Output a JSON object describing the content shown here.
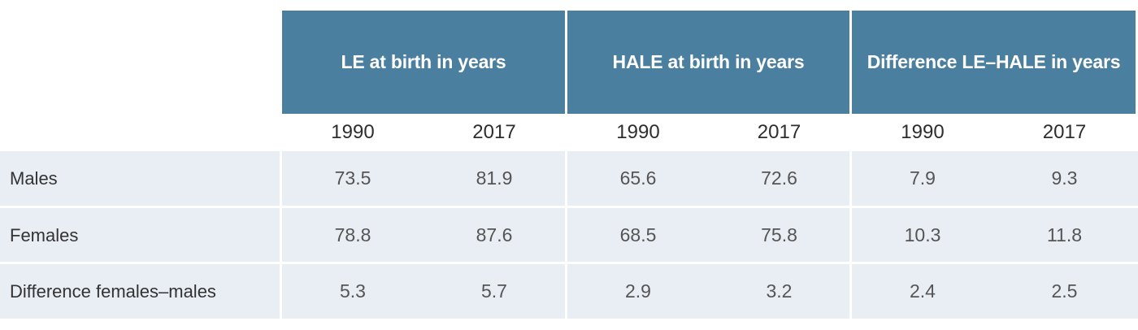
{
  "table": {
    "groups": [
      {
        "label": "LE at birth in years"
      },
      {
        "label": "HALE at birth in years"
      },
      {
        "label": "Difference LE–HALE in years"
      }
    ],
    "years": [
      "1990",
      "2017",
      "1990",
      "2017",
      "1990",
      "2017"
    ],
    "rows": [
      {
        "label": "Males",
        "values": [
          "73.5",
          "81.9",
          "65.6",
          "72.6",
          "7.9",
          "9.3"
        ]
      },
      {
        "label": "Females",
        "values": [
          "78.8",
          "87.6",
          "68.5",
          "75.8",
          "10.3",
          "11.8"
        ]
      },
      {
        "label": "Difference females–males",
        "values": [
          "5.3",
          "5.7",
          "2.9",
          "3.2",
          "2.4",
          "2.5"
        ]
      }
    ],
    "colors": {
      "header_bg": "#4a7fa0",
      "header_text": "#ffffff",
      "row_bg": "#e9edf4"
    }
  }
}
